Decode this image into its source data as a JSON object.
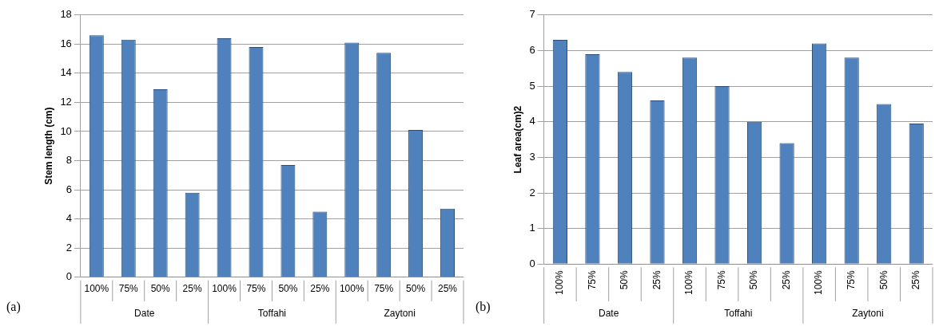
{
  "chart_data": [
    {
      "type": "bar",
      "ylabel": "Stem length (cm)",
      "categories": [
        "100%",
        "75%",
        "50%",
        "25%",
        "100%",
        "75%",
        "50%",
        "25%",
        "100%",
        "75%",
        "50%",
        "25%"
      ],
      "values": [
        16.6,
        16.3,
        12.9,
        5.8,
        16.4,
        15.8,
        7.7,
        4.5,
        16.1,
        15.4,
        10.1,
        4.7
      ],
      "color": "#4f81bd",
      "ylim": [
        0,
        18
      ],
      "yticks": [
        0,
        2,
        4,
        6,
        8,
        10,
        12,
        14,
        16,
        18
      ],
      "grid": "y",
      "annotations": [
        "(a)",
        "Date",
        "Toffahi",
        "Zaytoni"
      ]
    },
    {
      "type": "bar",
      "ylabel": "Leaf area(cm)2",
      "categories": [
        "100%",
        "75%",
        "50%",
        "25%",
        "100%",
        "75%",
        "50%",
        "25%",
        "100%",
        "75%",
        "50%",
        "25%"
      ],
      "values": [
        6.3,
        5.9,
        5.4,
        4.6,
        5.8,
        5.0,
        4.0,
        3.4,
        6.2,
        5.8,
        4.5,
        3.95
      ],
      "color": "#4f81bd",
      "ylim": [
        0,
        7
      ],
      "yticks": [
        0,
        1,
        2,
        3,
        4,
        5,
        6,
        7
      ],
      "grid": "y",
      "annotations": [
        "(b)",
        "Date",
        "Toffahi",
        "Zaytoni"
      ]
    }
  ]
}
